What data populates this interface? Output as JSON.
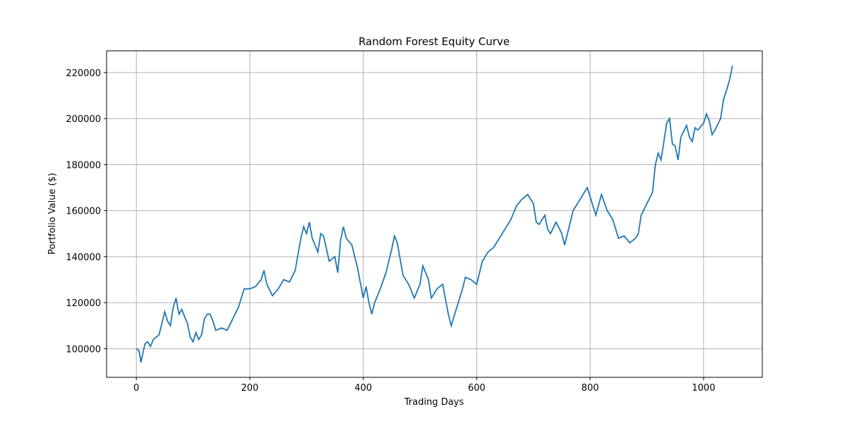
{
  "chart_data": {
    "type": "line",
    "title": "Random Forest Equity Curve",
    "x_label": "Trading Days",
    "y_label": "Portfolio Value ($)",
    "x": [
      0,
      5,
      8,
      15,
      20,
      25,
      30,
      40,
      50,
      55,
      60,
      65,
      70,
      75,
      80,
      90,
      95,
      100,
      105,
      110,
      115,
      120,
      125,
      130,
      135,
      140,
      150,
      160,
      170,
      180,
      190,
      200,
      210,
      220,
      225,
      230,
      240,
      250,
      260,
      270,
      280,
      285,
      290,
      295,
      300,
      305,
      310,
      320,
      325,
      330,
      340,
      350,
      355,
      360,
      365,
      370,
      380,
      390,
      400,
      405,
      410,
      415,
      420,
      430,
      440,
      450,
      455,
      460,
      470,
      480,
      490,
      500,
      505,
      515,
      520,
      530,
      540,
      550,
      555,
      560,
      570,
      575,
      580,
      590,
      600,
      610,
      620,
      630,
      640,
      650,
      660,
      670,
      680,
      690,
      700,
      705,
      710,
      720,
      725,
      730,
      740,
      750,
      755,
      760,
      770,
      780,
      790,
      795,
      800,
      810,
      820,
      830,
      840,
      850,
      860,
      870,
      880,
      885,
      890,
      900,
      910,
      915,
      920,
      925,
      930,
      935,
      940,
      945,
      950,
      955,
      960,
      970,
      975,
      980,
      985,
      990,
      1000,
      1005,
      1010,
      1015,
      1020,
      1030,
      1035,
      1040,
      1045,
      1051
    ],
    "series": [
      {
        "name": "Portfolio Value",
        "color": "#1f77b4",
        "values": [
          100000,
          99000,
          94000,
          102000,
          103000,
          101000,
          104000,
          106000,
          116000,
          112000,
          110000,
          118000,
          122000,
          115000,
          117000,
          111000,
          105000,
          103000,
          107000,
          104000,
          106000,
          113000,
          115000,
          115000,
          112000,
          108000,
          109000,
          108000,
          113000,
          118000,
          126000,
          126000,
          127000,
          130000,
          134000,
          128000,
          123000,
          126000,
          130000,
          129000,
          134000,
          141000,
          148000,
          153000,
          150000,
          155000,
          148000,
          142000,
          150000,
          149000,
          138000,
          140000,
          133000,
          147000,
          153000,
          148000,
          145000,
          135000,
          122000,
          127000,
          120000,
          115000,
          120000,
          126000,
          133000,
          143000,
          149000,
          146000,
          132000,
          128000,
          122000,
          128000,
          136000,
          130000,
          122000,
          126000,
          128000,
          115000,
          110000,
          114000,
          122000,
          126000,
          131000,
          130000,
          128000,
          138000,
          142000,
          144000,
          148000,
          152000,
          156000,
          162000,
          165000,
          167000,
          163000,
          155000,
          154000,
          158000,
          152000,
          150000,
          155000,
          150000,
          145000,
          150000,
          160000,
          164000,
          168000,
          170000,
          166000,
          158000,
          167000,
          160000,
          156000,
          148000,
          149000,
          146000,
          148000,
          150000,
          158000,
          163000,
          168000,
          180000,
          185000,
          182000,
          190000,
          198000,
          200000,
          189000,
          188000,
          182000,
          192000,
          197000,
          192000,
          190000,
          196000,
          195000,
          198000,
          202000,
          199000,
          193000,
          195000,
          200000,
          208000,
          212000,
          216000,
          223000
        ]
      }
    ],
    "xlim": [
      -52.5,
      1103.5
    ],
    "xticks": [
      0,
      200,
      400,
      600,
      800,
      1000
    ],
    "ylim": [
      87550,
      229450
    ],
    "yticks": [
      100000,
      120000,
      140000,
      160000,
      180000,
      200000,
      220000
    ],
    "grid": true
  }
}
